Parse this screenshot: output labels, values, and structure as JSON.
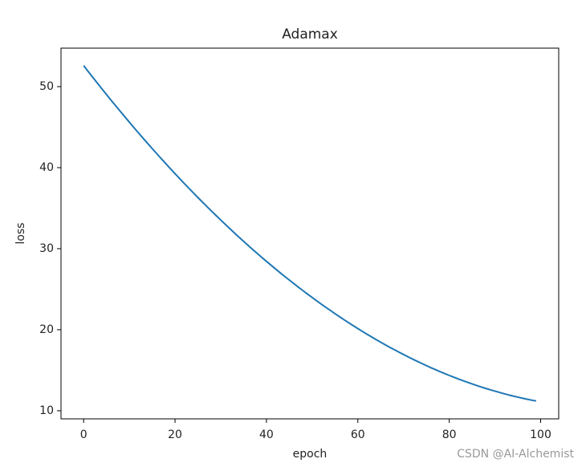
{
  "chart_data": {
    "type": "line",
    "title": "Adamax",
    "xlabel": "epoch",
    "ylabel": "loss",
    "x": [
      0,
      1,
      2,
      3,
      4,
      5,
      6,
      7,
      8,
      9,
      10,
      11,
      12,
      13,
      14,
      15,
      16,
      17,
      18,
      19,
      20,
      21,
      22,
      23,
      24,
      25,
      26,
      27,
      28,
      29,
      30,
      31,
      32,
      33,
      34,
      35,
      36,
      37,
      38,
      39,
      40,
      41,
      42,
      43,
      44,
      45,
      46,
      47,
      48,
      49,
      50,
      51,
      52,
      53,
      54,
      55,
      56,
      57,
      58,
      59,
      60,
      61,
      62,
      63,
      64,
      65,
      66,
      67,
      68,
      69,
      70,
      71,
      72,
      73,
      74,
      75,
      76,
      77,
      78,
      79,
      80,
      81,
      82,
      83,
      84,
      85,
      86,
      87,
      88,
      89,
      90,
      91,
      92,
      93,
      94,
      95,
      96,
      97,
      98,
      99
    ],
    "series": [
      {
        "color": "#1f77b4",
        "values": [
          52.6,
          51.87,
          51.15,
          50.44,
          49.73,
          49.03,
          48.33,
          47.64,
          46.96,
          46.29,
          45.62,
          44.95,
          44.29,
          43.64,
          43.0,
          42.36,
          41.73,
          41.1,
          40.48,
          39.87,
          39.26,
          38.66,
          38.06,
          37.48,
          36.89,
          36.32,
          35.75,
          35.19,
          34.63,
          34.08,
          33.54,
          33.0,
          32.47,
          31.94,
          31.42,
          30.91,
          30.4,
          29.9,
          29.41,
          28.92,
          28.44,
          27.97,
          27.5,
          27.03,
          26.58,
          26.13,
          25.69,
          25.25,
          24.82,
          24.39,
          23.98,
          23.56,
          23.16,
          22.76,
          22.37,
          21.98,
          21.6,
          21.22,
          20.86,
          20.5,
          20.14,
          19.79,
          19.45,
          19.11,
          18.78,
          18.46,
          18.14,
          17.83,
          17.53,
          17.23,
          16.94,
          16.65,
          16.37,
          16.1,
          15.83,
          15.57,
          15.31,
          15.07,
          14.82,
          14.59,
          14.36,
          14.14,
          13.92,
          13.71,
          13.51,
          13.31,
          13.12,
          12.93,
          12.75,
          12.58,
          12.42,
          12.26,
          12.1,
          11.95,
          11.81,
          11.68,
          11.55,
          11.43,
          11.31,
          11.2
        ]
      }
    ],
    "xlim": [
      -4.95,
      103.95
    ],
    "xticks": [
      0,
      20,
      40,
      60,
      80,
      100
    ],
    "ylim": [
      9.0,
      54.75
    ],
    "yticks": [
      10,
      20,
      30,
      40,
      50
    ],
    "grid": false,
    "watermark": "CSDN @AI-Alchemist"
  }
}
